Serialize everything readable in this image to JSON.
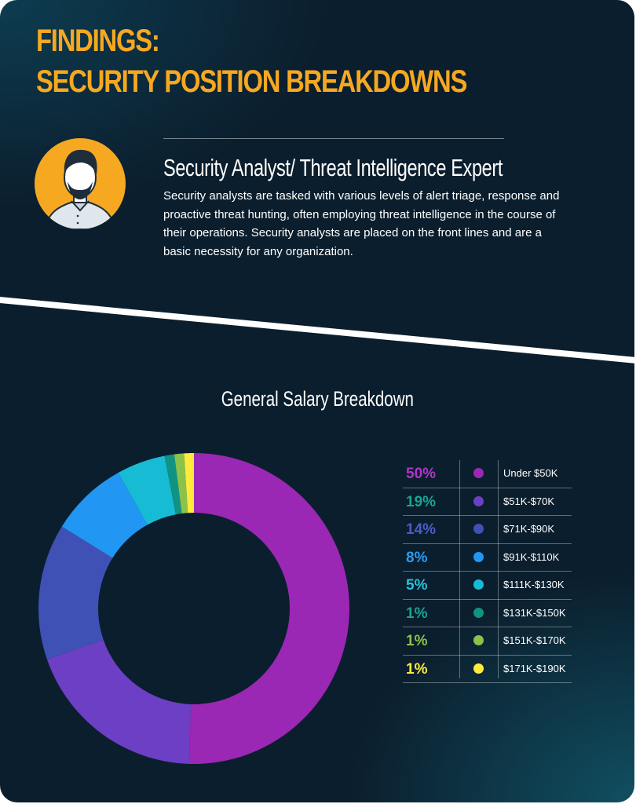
{
  "header": {
    "title_line1": "FINDINGS:",
    "title_line2": "SECURITY POSITION BREAKDOWNS"
  },
  "role": {
    "title": "Security Analyst/ Threat Intelligence Expert",
    "description": "Security analysts are tasked with various levels of alert triage, response and proactive threat hunting, often employing threat intelligence in the course of their operations. Security analysts are placed on the front lines and are a basic necessity for any organization.",
    "avatar_icon": "person-avatar-icon"
  },
  "colors": {
    "accent": "#f6a821",
    "background": "#0b1e2d"
  },
  "chart_data": {
    "type": "pie",
    "title": "General Salary Breakdown",
    "donut": true,
    "legend_position": "right",
    "categories": [
      "Under $50K",
      "$51K-$70K",
      "$71K-$90K",
      "$91K-$110K",
      "$111K-$130K",
      "$131K-$150K",
      "$151K-$170K",
      "$171K-$190K"
    ],
    "values": [
      50,
      19,
      14,
      8,
      5,
      1,
      1,
      1
    ],
    "value_labels": [
      "50%",
      "19%",
      "14%",
      "8%",
      "5%",
      "1%",
      "1%",
      "1%"
    ],
    "colors": [
      "#9b27b5",
      "#6d3fc4",
      "#3f51b5",
      "#2196f3",
      "#17bcd4",
      "#119383",
      "#8bc34a",
      "#ffeb3b"
    ],
    "label_colors": [
      "#b034c9",
      "#17a594",
      "#4a5ccc",
      "#2a9cf3",
      "#22c6dc",
      "#17a594",
      "#8bc34a",
      "#ffeb3b"
    ]
  }
}
